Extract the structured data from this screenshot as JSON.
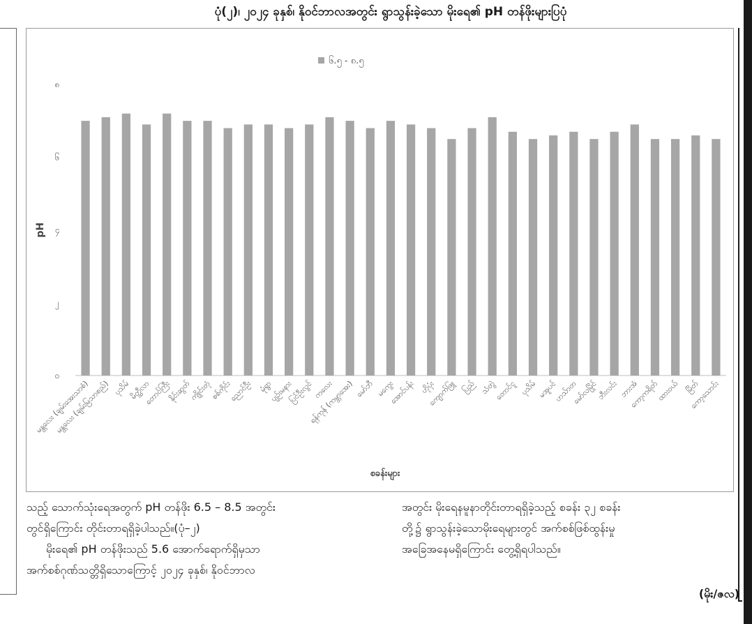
{
  "figure": {
    "title": "ပုံ(၂)၊ ၂၀၂၄ ခုနှစ်၊ နိုဝင်ဘာလအတွင်း ရွာသွန်းခဲ့သော မိုးရေ၏ pH တန်ဖိုးများပြပုံ"
  },
  "chart_data": {
    "type": "bar",
    "title": "",
    "xlabel": "စခန်းများ",
    "ylabel": "pH",
    "ylim": [
      0,
      8
    ],
    "yticks": [
      0,
      2,
      4,
      6,
      8
    ],
    "ytick_labels": [
      "၀",
      "၂",
      "၄",
      "၆",
      "၈"
    ],
    "grid": false,
    "legend_position": "top-center",
    "series": [
      {
        "name": "၆.၅ - ၈.၅",
        "color": "#a6a6a6",
        "values": [
          7.0,
          7.1,
          7.2,
          6.9,
          7.2,
          7.0,
          7.0,
          6.8,
          6.9,
          6.9,
          6.8,
          6.9,
          7.1,
          7.0,
          6.8,
          7.0,
          6.9,
          6.8,
          6.5,
          6.8,
          7.1,
          6.7,
          6.5,
          6.6,
          6.7,
          6.5,
          6.7,
          6.9,
          6.5,
          6.5,
          6.6,
          6.5
        ]
      }
    ],
    "categories": [
      "မန္တလေး (ချမ်းအေးသာစံ)",
      "မန္တလေး (ချမ်းမြသာစည်)",
      "ပုသိမ်",
      "မိတ္ထီလာ",
      "တောင်ကြီး",
      "နိုင်းဆွတ်",
      "ကျိုင်းတုံ",
      "စစ်ကိုင်း",
      "ညောင်ဦး",
      "မုံရွာ",
      "ပျဉ်းမနား",
      "ပြင်ဦးလွင်",
      "ကလေး",
      "ရန်ကုန် (ကမ္ဘာအေး)",
      "မော်ဘီ",
      "မကွေး",
      "အောင်ပန်း",
      "ဟိုပုံး",
      "ကျောက်ဖြူ",
      "ပြည်",
      "သံတွဲ",
      "တောင်ငူ",
      "ပုသိမ်",
      "မအူပင်",
      "ဟသ်ာတ",
      "မော်လမြိုင်",
      "ဘီးလင်း",
      "ဘားအံ",
      "ကော့ကရိတ်",
      "ထားဝယ်",
      "မြိတ်",
      "ကော့သောင်း"
    ]
  },
  "text": {
    "left_col_line1": "သည့် သောက်သုံးရေအတွက် pH တန်ဖိုး 6.5 – 8.5 အတွင်း",
    "left_col_line2": "တွင်ရှိကြောင်း တိုင်းတာရရှိခဲ့ပါသည်။(ပုံ–၂)",
    "left_col_line3": "မိုးရေ၏ pH တန်ဖိုးသည် 5.6 အောက်ရောက်ရှိမှသာ",
    "left_col_line4": "အက်စစ်ဂုဏ်သတ္တိရှိသောကြောင့် ၂၀၂၄ ခုနှစ်၊ နိုဝင်ဘာလ",
    "right_col_line1": "အတွင်း မိုးရေနမူနာတိုင်းတာရရှိခဲ့သည့် စခန်း ၃၂ စခန်း",
    "right_col_line2": "တို့၌ ရွာသွန်းခဲ့သောမိုးရေများတွင် အက်စစ်ဖြစ်ထွန်းမှု",
    "right_col_line3": "အခြေအနေမရှိကြောင်း တွေ့ရှိရပါသည်။",
    "signature": "(မိုး/ဇလ)"
  }
}
